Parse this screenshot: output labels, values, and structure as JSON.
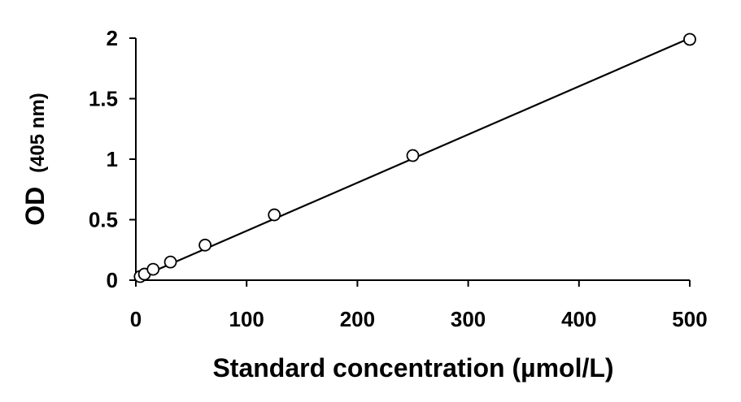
{
  "chart_data": {
    "type": "scatter",
    "title": "",
    "xlabel": "Standard concentration (µmol/L)",
    "ylabel_main": "OD",
    "ylabel_unit": "(405 nm)",
    "xlim": [
      0,
      500
    ],
    "ylim": [
      0,
      2
    ],
    "xticks": [
      0,
      100,
      200,
      300,
      400,
      500
    ],
    "yticks": [
      0,
      0.5,
      1,
      1.5,
      2
    ],
    "grid": false,
    "legend": "none",
    "series": [
      {
        "points": [
          [
            3.9,
            0.03
          ],
          [
            7.8,
            0.05
          ],
          [
            15.6,
            0.09
          ],
          [
            31.25,
            0.15
          ],
          [
            62.5,
            0.29
          ],
          [
            125,
            0.54
          ],
          [
            250,
            1.03
          ],
          [
            500,
            1.99
          ]
        ],
        "marker": "open-circle"
      }
    ],
    "trendline": {
      "type": "linear",
      "x": [
        3.9,
        500
      ],
      "y": [
        0.025,
        2.0
      ]
    },
    "colors": {
      "axis": "#000000",
      "marker": "#000000",
      "line": "#000000"
    }
  }
}
